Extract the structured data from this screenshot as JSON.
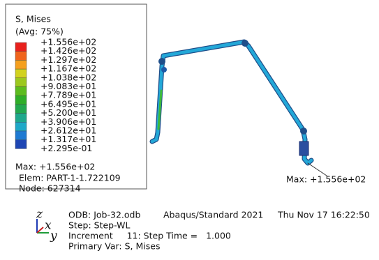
{
  "legend": {
    "title": "S, Mises",
    "subtitle": "(Avg: 75%)",
    "labels": [
      "+1.556e+02",
      "+1.426e+02",
      "+1.297e+02",
      "+1.167e+02",
      "+1.038e+02",
      "+9.083e+01",
      "+7.789e+01",
      "+6.495e+01",
      "+5.200e+01",
      "+3.906e+01",
      "+2.612e+01",
      "+1.317e+01",
      "+2.295e-01"
    ],
    "colors": [
      "#e8201c",
      "#f0641c",
      "#f5a01e",
      "#d2d21e",
      "#9cc81e",
      "#5cbc1e",
      "#2eae28",
      "#22a84e",
      "#1ea88c",
      "#1ea8c8",
      "#1e7ad2",
      "#1e46b4"
    ],
    "max": "Max: +1.556e+02",
    "elem": "Elem: PART-1-1.722109",
    "node": "Node: 627314"
  },
  "annotation": "Max: +1.556e+02",
  "triad": {
    "z": "z",
    "x": "x",
    "y": "y"
  },
  "info": {
    "odb": "ODB: Job-32.odb",
    "solver": "Abaqus/Standard 2021",
    "date": "Thu Nov 17 16:22:50",
    "step": "Step: Step-WL",
    "increment": "Increment     11: Step Time =   1.000",
    "primary": "Primary Var: S, Mises"
  }
}
